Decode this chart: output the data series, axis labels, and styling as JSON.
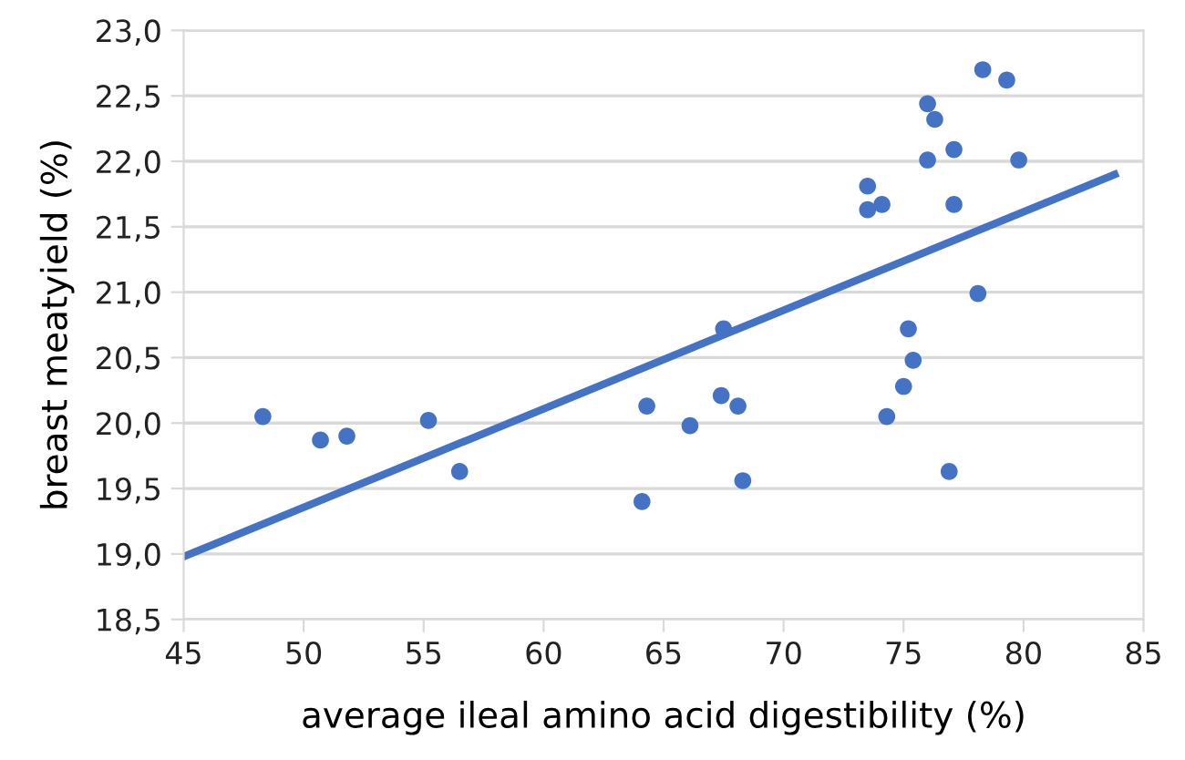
{
  "chart_data": {
    "type": "scatter",
    "xlabel": "average ileal amino acid digestibility (%)",
    "ylabel": "breast meatyield (%)",
    "series": [
      {
        "color": "#4472c4",
        "marker": "circle",
        "x": [
          48.3,
          50.7,
          51.8,
          55.2,
          56.5,
          64.1,
          64.3,
          66.1,
          67.4,
          67.5,
          68.1,
          68.3,
          73.5,
          73.5,
          74.1,
          74.3,
          75.0,
          75.2,
          75.4,
          76.0,
          76.0,
          76.3,
          76.9,
          77.1,
          77.1,
          78.1,
          78.3,
          79.3,
          79.8
        ],
        "values": [
          20.05,
          19.87,
          19.9,
          20.02,
          19.63,
          19.4,
          20.13,
          19.98,
          20.21,
          20.72,
          20.13,
          19.56,
          21.81,
          21.63,
          21.67,
          20.05,
          20.28,
          20.72,
          20.48,
          22.44,
          22.01,
          22.32,
          19.63,
          22.09,
          21.67,
          20.99,
          22.7,
          22.62,
          22.01
        ]
      },
      {
        "type": "line",
        "color": "#4472c4",
        "line_style": "solid",
        "x": [
          45,
          83.8
        ],
        "values": [
          18.98,
          21.9
        ]
      }
    ],
    "xlim": [
      45,
      85
    ],
    "xticks": [
      45,
      50,
      55,
      60,
      65,
      70,
      75,
      80,
      85
    ],
    "ylim": [
      18.5,
      23.0
    ],
    "yticks": [
      {
        "value": 18.5,
        "label": "18,5"
      },
      {
        "value": 19.0,
        "label": "19,0"
      },
      {
        "value": 19.5,
        "label": "19,5"
      },
      {
        "value": 20.0,
        "label": "20,0"
      },
      {
        "value": 20.5,
        "label": "20,5"
      },
      {
        "value": 21.0,
        "label": "21,0"
      },
      {
        "value": 21.5,
        "label": "21,5"
      },
      {
        "value": 22.0,
        "label": "22,0"
      },
      {
        "value": 22.5,
        "label": "22,5"
      },
      {
        "value": 23.0,
        "label": "23,0"
      }
    ],
    "grid": "y"
  }
}
